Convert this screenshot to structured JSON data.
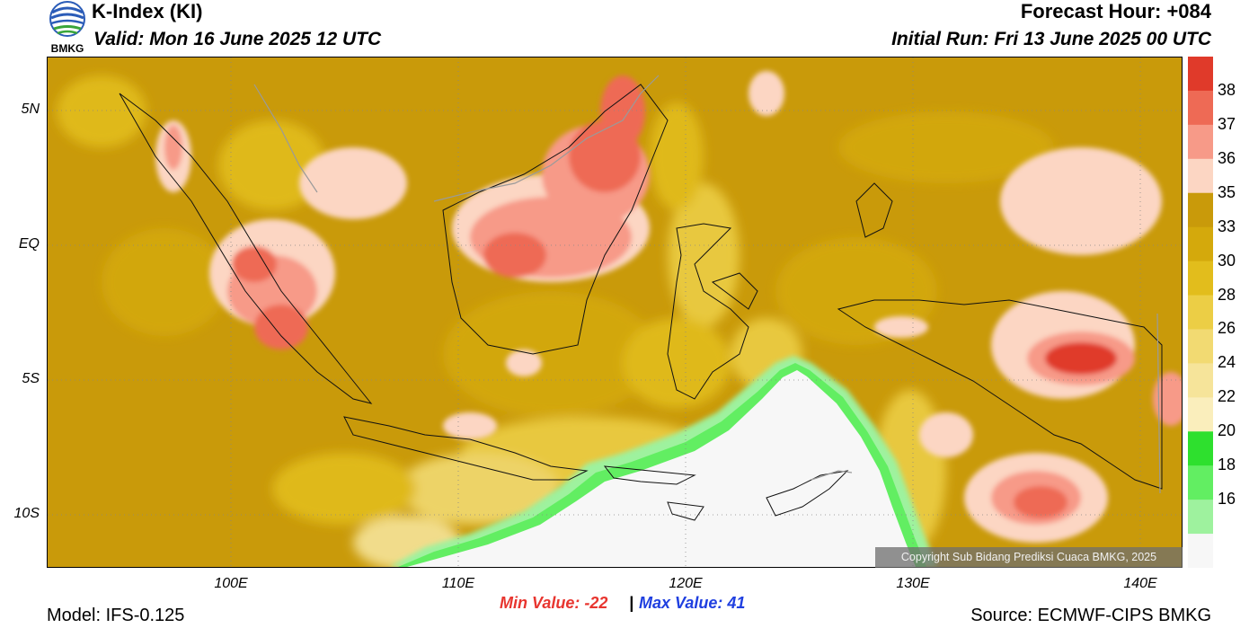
{
  "header": {
    "title": "K-Index (KI)",
    "valid": "Valid: Mon 16 June 2025 12 UTC",
    "forecast_hour": "Forecast Hour: +084",
    "initial_run": "Initial Run: Fri 13 June 2025 00 UTC",
    "logo_text": "BMKG"
  },
  "map": {
    "lat_labels": [
      "5N",
      "EQ",
      "5S",
      "10S"
    ],
    "lon_labels": [
      "100E",
      "110E",
      "120E",
      "130E",
      "140E"
    ],
    "copyright": "Copyright Sub Bidang Prediksi Cuaca BMKG, 2025"
  },
  "colorbar": {
    "labels": [
      "38",
      "37",
      "36",
      "35",
      "33",
      "30",
      "28",
      "26",
      "24",
      "22",
      "20",
      "18",
      "16"
    ],
    "colors": [
      "#e03a2a",
      "#ee6a55",
      "#f79a88",
      "#fcd6c3",
      "#c99a0a",
      "#d4a90c",
      "#e2bd1c",
      "#ecce45",
      "#f2da72",
      "#f6e49a",
      "#faeebc",
      "#2ee02e",
      "#62ee62",
      "#9ef29e",
      "#f7f7f7"
    ]
  },
  "stats": {
    "min": "Min Value: -22",
    "separator": "|",
    "max": "Max Value:  41"
  },
  "footer": {
    "model": "Model: IFS-0.125",
    "source": "Source: ECMWF-CIPS BMKG"
  }
}
